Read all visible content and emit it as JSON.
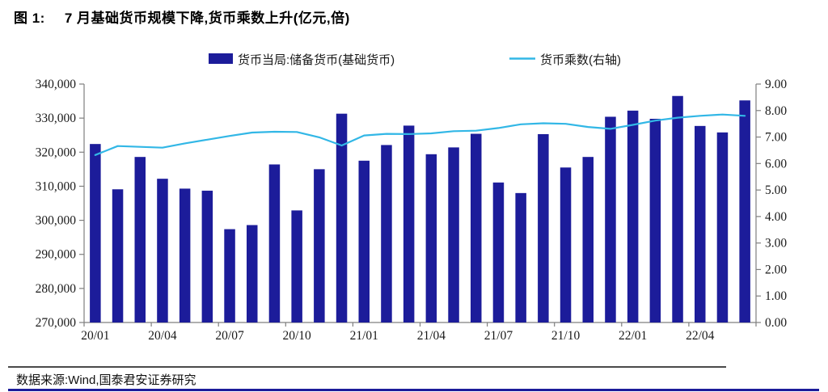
{
  "title": {
    "figure_label": "图 1:",
    "text": "7 月基础货币规模下降,货币乘数上升(亿元,倍)"
  },
  "source": {
    "text": "数据来源:Wind,国泰君安证券研究"
  },
  "legend": {
    "bar_label": "货币当局:储备货币(基础货币)",
    "line_label": "货币乘数(右轴)"
  },
  "colors": {
    "bar": "#1c1c9a",
    "line": "#32b7e6",
    "axis": "#7f7f7f",
    "label": "#1a1a1a"
  },
  "chart_data": {
    "type": "bar",
    "title": "7 月基础货币规模下降,货币乘数上升(亿元,倍)",
    "categories": [
      "20/01",
      "20/02",
      "20/03",
      "20/04",
      "20/05",
      "20/06",
      "20/07",
      "20/08",
      "20/09",
      "20/10",
      "20/11",
      "20/12",
      "21/01",
      "21/02",
      "21/03",
      "21/04",
      "21/05",
      "21/06",
      "21/07",
      "21/08",
      "21/09",
      "21/10",
      "21/11",
      "21/12",
      "22/01",
      "22/02",
      "22/03",
      "22/04",
      "22/05",
      "22/06"
    ],
    "x_tick_labels": [
      "20/01",
      "20/04",
      "20/07",
      "20/10",
      "21/01",
      "21/04",
      "21/07",
      "21/10",
      "22/01",
      "22/04"
    ],
    "series": [
      {
        "name": "货币当局:储备货币(基础货币)",
        "type": "bar",
        "axis": "left",
        "values": [
          322400,
          309100,
          318600,
          312200,
          309300,
          308700,
          297400,
          298600,
          316400,
          302900,
          315000,
          331300,
          317500,
          322100,
          327800,
          319400,
          321400,
          325400,
          311100,
          308000,
          325300,
          315500,
          318600,
          330400,
          332200,
          329800,
          336500,
          327700,
          325800,
          335200
        ]
      },
      {
        "name": "货币乘数(右轴)",
        "type": "line",
        "axis": "right",
        "values": [
          6.32,
          6.66,
          6.63,
          6.6,
          6.76,
          6.9,
          7.04,
          7.17,
          7.2,
          7.19,
          6.99,
          6.68,
          7.06,
          7.12,
          7.11,
          7.14,
          7.22,
          7.24,
          7.34,
          7.48,
          7.52,
          7.5,
          7.38,
          7.31,
          7.46,
          7.62,
          7.73,
          7.8,
          7.85,
          7.8
        ]
      }
    ],
    "left_axis": {
      "min": 270000,
      "max": 340000,
      "step": 10000,
      "unit": "亿元"
    },
    "right_axis": {
      "min": 0,
      "max": 9,
      "step": 1,
      "unit": "倍"
    },
    "grid": false,
    "legend_position": "top"
  }
}
